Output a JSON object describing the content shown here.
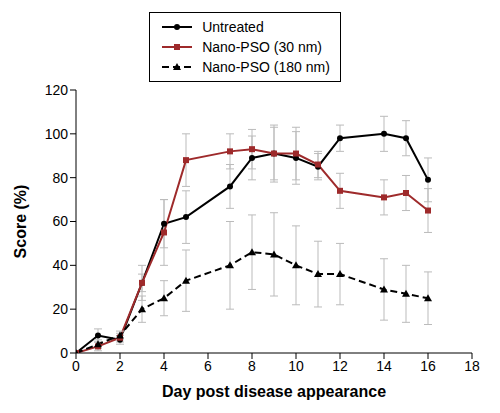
{
  "chart_data": {
    "type": "line",
    "x_label": "Day post disease appearance",
    "y_label": "Score (%)",
    "x": [
      0,
      1,
      2,
      3,
      4,
      5,
      7,
      8,
      9,
      10,
      11,
      12,
      14,
      15,
      16
    ],
    "series": [
      {
        "name": "Untreated",
        "color": "#000000",
        "marker": "circle",
        "line_style": "solid",
        "values": [
          0,
          8,
          6,
          32,
          59,
          62,
          76,
          89,
          91,
          89,
          85,
          98,
          100,
          98,
          79
        ],
        "error": [
          0,
          3,
          2,
          4,
          11,
          12,
          10,
          10,
          13,
          12,
          6,
          6,
          8,
          8,
          10
        ]
      },
      {
        "name": "Nano-PSO (30 nm)",
        "color": "#9e2a2b",
        "marker": "square",
        "line_style": "solid",
        "values": [
          0,
          3,
          7,
          32,
          55,
          88,
          92,
          93,
          91,
          91,
          86,
          74,
          71,
          73,
          65
        ],
        "error": [
          0,
          2,
          2,
          8,
          15,
          12,
          8,
          9,
          12,
          12,
          6,
          8,
          8,
          8,
          10
        ]
      },
      {
        "name": "Nano-PSO (180 nm)",
        "color": "#000000",
        "marker": "triangle",
        "line_style": "dashed",
        "values": [
          0,
          4,
          8,
          20,
          25,
          33,
          40,
          46,
          45,
          40,
          36,
          36,
          29,
          27,
          25
        ],
        "error": [
          0,
          2,
          2,
          6,
          8,
          14,
          20,
          17,
          19,
          18,
          15,
          14,
          14,
          13,
          12
        ]
      }
    ],
    "xlim": [
      0,
      18
    ],
    "xticks": [
      0,
      2,
      4,
      6,
      8,
      10,
      12,
      14,
      16,
      18
    ],
    "ylim": [
      0,
      120
    ],
    "yticks": [
      0,
      20,
      40,
      60,
      80,
      100,
      120
    ],
    "grid": false,
    "legend": "top"
  }
}
